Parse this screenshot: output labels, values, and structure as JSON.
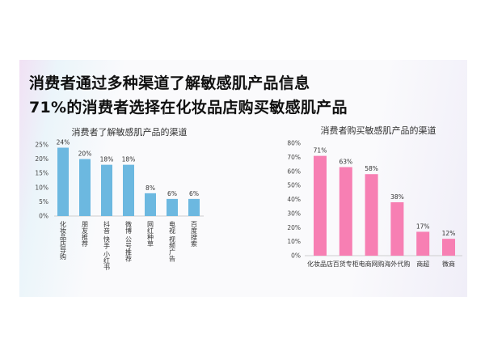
{
  "headline": {
    "line1": "消费者通过多种渠道了解敏感肌产品信息",
    "line2": "71%的消费者选择在化妆品店购买敏感肌产品"
  },
  "chart_data": [
    {
      "type": "bar",
      "title": "消费者了解敏感肌产品的渠道",
      "categories": [
        "化妆品店导购",
        "朋友推荐",
        "抖音 快手 小红书",
        "微博 公号推荐",
        "网红种草",
        "电视 视频广告",
        "百度搜索"
      ],
      "values": [
        24,
        20,
        18,
        18,
        8,
        6,
        6
      ],
      "data_labels": [
        "24%",
        "20%",
        "18%",
        "18%",
        "8%",
        "6%",
        "6%"
      ],
      "yticks": [
        "0%",
        "5%",
        "10%",
        "15%",
        "20%",
        "25%"
      ],
      "ylim": [
        0,
        25
      ],
      "unit": "%",
      "color": "#6cb8e0",
      "grid": false
    },
    {
      "type": "bar",
      "title": "消费者购买敏感肌产品的渠道",
      "categories": [
        "化妆品店",
        "百货专柜",
        "电商网购",
        "海外代购",
        "商超",
        "微商"
      ],
      "values": [
        71,
        63,
        58,
        38,
        17,
        12
      ],
      "data_labels": [
        "71%",
        "63%",
        "58%",
        "38%",
        "17%",
        "12%"
      ],
      "yticks": [
        "0%",
        "10%",
        "20%",
        "30%",
        "40%",
        "50%",
        "60%",
        "70%",
        "80%"
      ],
      "ylim": [
        0,
        80
      ],
      "unit": "%",
      "color": "#f77fb3",
      "grid": false
    }
  ]
}
